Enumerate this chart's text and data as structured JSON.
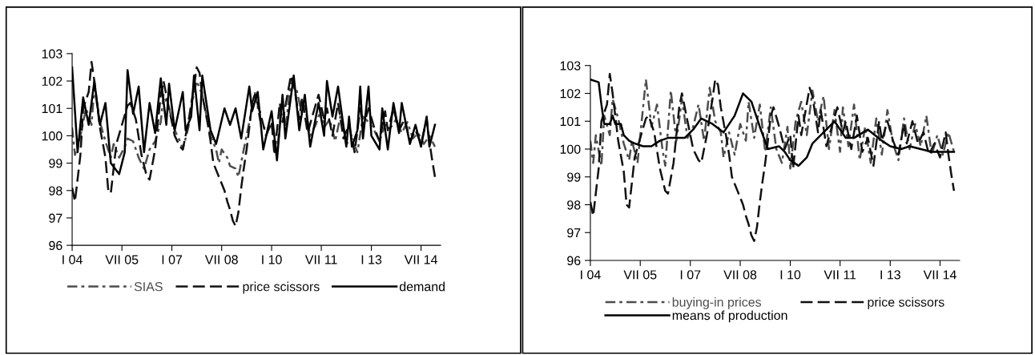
{
  "chart_data": [
    {
      "type": "line",
      "xlim": [
        "2004-01",
        "2015-02"
      ],
      "ylim": [
        96,
        103
      ],
      "yticks": [
        96,
        97,
        98,
        99,
        100,
        101,
        102,
        103
      ],
      "xticks": [
        {
          "value": "2004-01",
          "label": "I 04"
        },
        {
          "value": "2005-07",
          "label": "VII 05"
        },
        {
          "value": "2007-01",
          "label": "I 07"
        },
        {
          "value": "2008-07",
          "label": "VII 08"
        },
        {
          "value": "2010-01",
          "label": "I 10"
        },
        {
          "value": "2011-07",
          "label": "VII 11"
        },
        {
          "value": "2013-01",
          "label": "I 13"
        },
        {
          "value": "2014-07",
          "label": "VII 14"
        }
      ],
      "grid": false,
      "legend": "bottom",
      "marker": "none",
      "series": [
        {
          "name": "SIAS",
          "color": "#4d4d4d",
          "line_style": "dashdot",
          "x": [
            "2004-01",
            "2004-02",
            "2004-04",
            "2004-06",
            "2004-08",
            "2004-09",
            "2004-11",
            "2005-01",
            "2005-03",
            "2005-04",
            "2005-06",
            "2005-08",
            "2005-09",
            "2005-11",
            "2006-01",
            "2006-03",
            "2006-05",
            "2006-07",
            "2006-09",
            "2006-10",
            "2006-12",
            "2007-02",
            "2007-04",
            "2007-05",
            "2007-07",
            "2007-09",
            "2007-10",
            "2007-12",
            "2008-03",
            "2008-05",
            "2008-06",
            "2008-07",
            "2008-09",
            "2008-10",
            "2008-12",
            "2009-01",
            "2009-03",
            "2009-05",
            "2009-07",
            "2009-09",
            "2009-11",
            "2010-01",
            "2010-03",
            "2010-05",
            "2010-06",
            "2010-08",
            "2010-10",
            "2010-12",
            "2011-01",
            "2011-03",
            "2011-05",
            "2011-07",
            "2011-08",
            "2011-10",
            "2011-12",
            "2012-02",
            "2012-04",
            "2012-06",
            "2012-08",
            "2012-10",
            "2012-12",
            "2013-02",
            "2013-04",
            "2013-06",
            "2013-08",
            "2013-10",
            "2013-12",
            "2014-02",
            "2014-04",
            "2014-06",
            "2014-08",
            "2014-10",
            "2014-12"
          ],
          "values": [
            100.3,
            99.3,
            100.0,
            101.0,
            100.4,
            101.8,
            100.5,
            99.8,
            99.2,
            99.7,
            99.2,
            99.6,
            99.9,
            99.8,
            99.2,
            98.8,
            99.5,
            99.8,
            100.5,
            101.5,
            101.0,
            100.2,
            99.8,
            99.5,
            100.3,
            101.6,
            102.0,
            101.5,
            100.0,
            99.5,
            99.0,
            99.5,
            99.2,
            98.9,
            98.8,
            98.5,
            99.5,
            100.5,
            101.6,
            100.5,
            100.2,
            100.4,
            99.4,
            101.4,
            100.2,
            102.0,
            101.7,
            100.8,
            101.1,
            100.0,
            100.4,
            101.0,
            100.3,
            100.6,
            99.8,
            100.8,
            99.7,
            99.9,
            99.4,
            100.7,
            100.5,
            100.2,
            99.8,
            100.4,
            100.3,
            100.6,
            100.1,
            100.5,
            99.9,
            100.1,
            99.7,
            100.0,
            99.6
          ]
        },
        {
          "name": "price scissors",
          "color": "#111111",
          "line_style": "dashed",
          "x": [
            "2004-01",
            "2004-02",
            "2004-04",
            "2004-05",
            "2004-07",
            "2004-08",
            "2004-09",
            "2004-11",
            "2005-01",
            "2005-02",
            "2005-03",
            "2005-05",
            "2005-07",
            "2005-09",
            "2005-10",
            "2005-12",
            "2006-02",
            "2006-04",
            "2006-05",
            "2006-07",
            "2006-09",
            "2006-10",
            "2006-12",
            "2007-02",
            "2007-04",
            "2007-05",
            "2007-07",
            "2007-09",
            "2007-10",
            "2007-11",
            "2007-12",
            "2008-02",
            "2008-03",
            "2008-04",
            "2008-06",
            "2008-08",
            "2008-09",
            "2008-10",
            "2008-11",
            "2008-12",
            "2009-01",
            "2009-02",
            "2009-03",
            "2009-04",
            "2009-05",
            "2009-06",
            "2009-07",
            "2009-09",
            "2009-11",
            "2010-01",
            "2010-02",
            "2010-04",
            "2010-05",
            "2010-08",
            "2010-09",
            "2010-11",
            "2010-12",
            "2011-02",
            "2011-04",
            "2011-06",
            "2011-08",
            "2011-09",
            "2011-11",
            "2012-01",
            "2012-03",
            "2012-05",
            "2012-07",
            "2012-09",
            "2012-10",
            "2012-12",
            "2013-02",
            "2013-04",
            "2013-06",
            "2013-07",
            "2013-09",
            "2013-11",
            "2014-01",
            "2014-03",
            "2014-05",
            "2014-07",
            "2014-09",
            "2014-10",
            "2014-11",
            "2014-12"
          ],
          "values": [
            98.1,
            97.6,
            99.3,
            101.0,
            101.6,
            102.7,
            102.0,
            100.3,
            99.2,
            98.0,
            97.9,
            99.7,
            100.4,
            101.1,
            101.2,
            100.6,
            99.3,
            98.5,
            98.4,
            99.5,
            101.5,
            102.0,
            101.0,
            100.0,
            99.6,
            99.5,
            100.5,
            101.8,
            102.5,
            102.3,
            101.5,
            100.4,
            99.8,
            99.0,
            98.5,
            98.0,
            97.6,
            97.3,
            96.9,
            96.7,
            97.2,
            98.1,
            98.8,
            99.5,
            100.3,
            101.2,
            101.5,
            100.8,
            100.0,
            100.5,
            99.3,
            101.2,
            100.5,
            102.2,
            101.9,
            100.6,
            101.4,
            100.1,
            100.8,
            101.5,
            100.6,
            101.0,
            100.0,
            101.2,
            99.9,
            100.4,
            99.4,
            101.0,
            100.3,
            101.0,
            100.3,
            99.8,
            100.9,
            100.2,
            101.0,
            100.2,
            100.6,
            99.8,
            100.2,
            99.7,
            100.6,
            99.8,
            99.1,
            98.5
          ]
        },
        {
          "name": "demand",
          "color": "#000000",
          "line_style": "solid",
          "x": [
            "2004-01",
            "2004-03",
            "2004-05",
            "2004-07",
            "2004-09",
            "2004-11",
            "2005-01",
            "2005-03",
            "2005-06",
            "2005-08",
            "2005-09",
            "2005-11",
            "2006-01",
            "2006-03",
            "2006-05",
            "2006-07",
            "2006-09",
            "2006-11",
            "2006-12",
            "2007-02",
            "2007-05",
            "2007-06",
            "2007-08",
            "2007-09",
            "2007-11",
            "2007-12",
            "2008-03",
            "2008-05",
            "2008-08",
            "2008-10",
            "2008-12",
            "2009-02",
            "2009-05",
            "2009-06",
            "2009-08",
            "2009-10",
            "2010-01",
            "2010-03",
            "2010-05",
            "2010-06",
            "2010-09",
            "2010-11",
            "2011-01",
            "2011-03",
            "2011-06",
            "2011-08",
            "2011-09",
            "2011-11",
            "2012-01",
            "2012-04",
            "2012-05",
            "2012-06",
            "2012-08",
            "2012-09",
            "2012-10",
            "2012-12",
            "2013-01",
            "2013-04",
            "2013-05",
            "2013-07",
            "2013-09",
            "2013-11",
            "2013-12",
            "2014-03",
            "2014-05",
            "2014-07",
            "2014-09",
            "2014-10",
            "2014-12"
          ],
          "values": [
            102.5,
            99.4,
            101.4,
            100.4,
            102.0,
            100.4,
            101.2,
            99.0,
            98.6,
            99.4,
            102.4,
            100.8,
            101.8,
            99.4,
            101.2,
            100.1,
            102.1,
            100.4,
            101.9,
            100.2,
            101.6,
            100.2,
            100.7,
            102.2,
            100.2,
            102.2,
            100.2,
            99.7,
            101.0,
            100.4,
            101.0,
            99.9,
            101.8,
            100.9,
            101.6,
            99.5,
            100.9,
            99.1,
            101.5,
            99.9,
            102.2,
            100.2,
            101.5,
            99.6,
            101.2,
            100.0,
            102.0,
            100.7,
            101.8,
            99.6,
            100.7,
            99.6,
            100.2,
            101.8,
            99.9,
            101.8,
            100.0,
            99.5,
            101.0,
            99.5,
            101.2,
            100.1,
            101.2,
            99.7,
            100.4,
            99.6,
            100.7,
            99.6,
            100.4
          ]
        }
      ]
    },
    {
      "type": "line",
      "xlim": [
        "2004-01",
        "2015-02"
      ],
      "ylim": [
        96,
        103
      ],
      "yticks": [
        96,
        97,
        98,
        99,
        100,
        101,
        102,
        103
      ],
      "xticks": [
        {
          "value": "2004-01",
          "label": "I 04"
        },
        {
          "value": "2005-07",
          "label": "VII 05"
        },
        {
          "value": "2007-01",
          "label": "I 07"
        },
        {
          "value": "2008-07",
          "label": "VII 08"
        },
        {
          "value": "2010-01",
          "label": "I 10"
        },
        {
          "value": "2011-07",
          "label": "VII 11"
        },
        {
          "value": "2013-01",
          "label": "I 13"
        },
        {
          "value": "2014-07",
          "label": "VII 14"
        }
      ],
      "grid": false,
      "legend": "bottom",
      "marker": "none",
      "series": [
        {
          "name": "buying-in prices",
          "color": "#4d4d4d",
          "line_style": "dashdot",
          "x": [
            "2004-01",
            "2004-02",
            "2004-03",
            "2004-05",
            "2004-06",
            "2004-08",
            "2004-09",
            "2004-11",
            "2005-01",
            "2005-03",
            "2005-04",
            "2005-06",
            "2005-08",
            "2005-09",
            "2005-11",
            "2006-01",
            "2006-03",
            "2006-04",
            "2006-06",
            "2006-08",
            "2006-10",
            "2006-12",
            "2007-02",
            "2007-04",
            "2007-06",
            "2007-08",
            "2007-10",
            "2007-12",
            "2008-01",
            "2008-03",
            "2008-05",
            "2008-07",
            "2008-09",
            "2008-10",
            "2008-12",
            "2009-02",
            "2009-04",
            "2009-06",
            "2009-08",
            "2009-10",
            "2009-12",
            "2010-01",
            "2010-03",
            "2010-05",
            "2010-07",
            "2010-09",
            "2010-11",
            "2011-01",
            "2011-03",
            "2011-05",
            "2011-07",
            "2011-08",
            "2011-10",
            "2011-12",
            "2012-02",
            "2012-04",
            "2012-06",
            "2012-08",
            "2012-10",
            "2012-12",
            "2013-02",
            "2013-04",
            "2013-06",
            "2013-08",
            "2013-10",
            "2013-12",
            "2014-02",
            "2014-04",
            "2014-06",
            "2014-08",
            "2014-10",
            "2014-12"
          ],
          "values": [
            100.3,
            99.5,
            100.5,
            99.4,
            101.2,
            100.5,
            101.8,
            101.1,
            100.2,
            99.6,
            100.3,
            99.5,
            101.5,
            102.5,
            100.8,
            101.6,
            100.0,
            99.4,
            102.1,
            100.3,
            101.8,
            100.4,
            100.8,
            101.6,
            100.3,
            102.2,
            101.0,
            100.6,
            99.7,
            100.6,
            99.8,
            100.9,
            100.3,
            101.7,
            100.4,
            101.6,
            99.9,
            101.5,
            100.0,
            99.5,
            100.8,
            99.3,
            101.0,
            101.7,
            100.5,
            102.1,
            101.0,
            101.9,
            100.0,
            101.4,
            99.9,
            101.5,
            100.1,
            101.6,
            99.6,
            100.8,
            99.5,
            101.1,
            99.8,
            101.4,
            100.2,
            99.6,
            101.1,
            100.0,
            100.9,
            100.1,
            101.2,
            99.8,
            100.5,
            99.8,
            100.6,
            99.9
          ]
        },
        {
          "name": "price scissors",
          "color": "#111111",
          "line_style": "dashed",
          "x": [
            "2004-01",
            "2004-02",
            "2004-04",
            "2004-05",
            "2004-07",
            "2004-08",
            "2004-09",
            "2004-11",
            "2005-01",
            "2005-02",
            "2005-03",
            "2005-05",
            "2005-07",
            "2005-09",
            "2005-10",
            "2005-12",
            "2006-02",
            "2006-04",
            "2006-05",
            "2006-07",
            "2006-09",
            "2006-10",
            "2006-12",
            "2007-02",
            "2007-04",
            "2007-05",
            "2007-07",
            "2007-09",
            "2007-10",
            "2007-11",
            "2007-12",
            "2008-02",
            "2008-03",
            "2008-04",
            "2008-06",
            "2008-08",
            "2008-09",
            "2008-10",
            "2008-11",
            "2008-12",
            "2009-01",
            "2009-02",
            "2009-03",
            "2009-04",
            "2009-05",
            "2009-06",
            "2009-07",
            "2009-09",
            "2009-11",
            "2010-01",
            "2010-02",
            "2010-04",
            "2010-05",
            "2010-08",
            "2010-09",
            "2010-11",
            "2010-12",
            "2011-02",
            "2011-04",
            "2011-06",
            "2011-08",
            "2011-09",
            "2011-11",
            "2012-01",
            "2012-03",
            "2012-05",
            "2012-07",
            "2012-09",
            "2012-10",
            "2012-12",
            "2013-02",
            "2013-04",
            "2013-06",
            "2013-07",
            "2013-09",
            "2013-11",
            "2014-01",
            "2014-03",
            "2014-05",
            "2014-07",
            "2014-09",
            "2014-10",
            "2014-11",
            "2014-12"
          ],
          "values": [
            98.1,
            97.6,
            99.3,
            101.0,
            101.6,
            102.7,
            102.0,
            100.3,
            99.2,
            98.0,
            97.9,
            99.7,
            100.4,
            101.1,
            101.2,
            100.6,
            99.3,
            98.5,
            98.4,
            99.5,
            101.5,
            102.0,
            101.0,
            100.0,
            99.6,
            99.5,
            100.5,
            101.8,
            102.5,
            102.3,
            101.5,
            100.4,
            99.8,
            99.0,
            98.5,
            98.0,
            97.6,
            97.3,
            96.9,
            96.7,
            97.2,
            98.1,
            98.8,
            99.5,
            100.3,
            101.2,
            101.5,
            100.8,
            100.0,
            100.5,
            99.3,
            101.2,
            100.5,
            102.2,
            101.9,
            100.6,
            101.4,
            100.1,
            100.8,
            101.5,
            100.6,
            101.0,
            100.0,
            101.2,
            99.9,
            100.4,
            99.4,
            101.0,
            100.3,
            101.0,
            100.3,
            99.8,
            100.9,
            100.2,
            101.0,
            100.2,
            100.6,
            99.8,
            100.2,
            99.7,
            100.6,
            99.8,
            99.1,
            98.5
          ]
        },
        {
          "name": "means of production",
          "color": "#000000",
          "line_style": "solid",
          "x": [
            "2004-01",
            "2004-04",
            "2004-05",
            "2004-06",
            "2004-08",
            "2004-09",
            "2004-10",
            "2004-12",
            "2005-01",
            "2005-03",
            "2005-05",
            "2005-08",
            "2005-11",
            "2006-02",
            "2006-05",
            "2006-08",
            "2006-11",
            "2007-02",
            "2007-05",
            "2007-09",
            "2008-01",
            "2008-05",
            "2008-08",
            "2008-11",
            "2009-02",
            "2009-05",
            "2009-09",
            "2009-11",
            "2010-01",
            "2010-04",
            "2010-07",
            "2010-09",
            "2010-11",
            "2011-02",
            "2011-05",
            "2011-09",
            "2011-12",
            "2012-05",
            "2012-10",
            "2013-01",
            "2013-05",
            "2013-08",
            "2013-12",
            "2014-04",
            "2014-08",
            "2014-12"
          ],
          "values": [
            102.5,
            102.4,
            101.6,
            100.9,
            100.9,
            101.2,
            100.9,
            100.9,
            100.5,
            100.3,
            100.2,
            100.1,
            100.1,
            100.3,
            100.4,
            100.4,
            100.4,
            100.7,
            101.1,
            100.9,
            100.6,
            101.2,
            102.0,
            101.7,
            100.8,
            100.0,
            100.1,
            99.9,
            99.6,
            99.4,
            99.7,
            100.2,
            100.4,
            100.7,
            101.0,
            100.4,
            100.4,
            100.7,
            100.3,
            100.1,
            100.0,
            100.1,
            100.0,
            99.9,
            99.9,
            99.9
          ]
        }
      ]
    }
  ]
}
